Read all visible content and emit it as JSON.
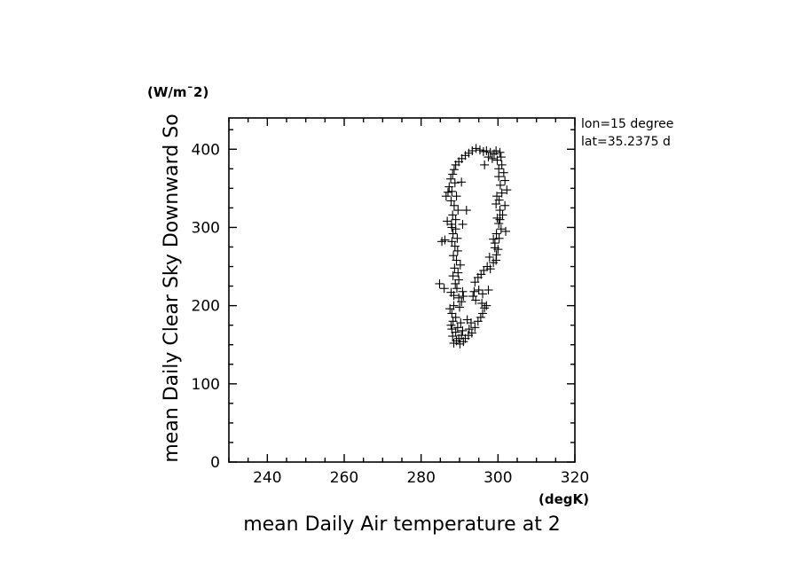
{
  "chart_data": {
    "type": "scatter",
    "title": "",
    "xlabel": "mean Daily Air temperature at 2",
    "ylabel": "mean Daily Clear Sky Downward So",
    "x_unit": "(degK)",
    "y_unit": "(W/m¯2)",
    "xlim": [
      230,
      320
    ],
    "ylim": [
      0,
      440
    ],
    "x_ticks": [
      "240",
      "260",
      "280",
      "300",
      "320"
    ],
    "y_ticks": [
      "0",
      "100",
      "200",
      "300",
      "400"
    ],
    "marker": "+",
    "annotations": [
      "lon=15 degree",
      "lat=35.2375 d"
    ],
    "grid": false,
    "points": [
      [
        288.5,
        152
      ],
      [
        289.2,
        155
      ],
      [
        290.1,
        151
      ],
      [
        291.0,
        154
      ],
      [
        289.8,
        158
      ],
      [
        288.2,
        161
      ],
      [
        290.5,
        162
      ],
      [
        291.5,
        158
      ],
      [
        292.3,
        162
      ],
      [
        289.0,
        166
      ],
      [
        288.0,
        170
      ],
      [
        287.8,
        175
      ],
      [
        289.5,
        172
      ],
      [
        290.8,
        168
      ],
      [
        292.5,
        170
      ],
      [
        293.2,
        165
      ],
      [
        294.0,
        172
      ],
      [
        293.0,
        178
      ],
      [
        292.0,
        182
      ],
      [
        288.3,
        180
      ],
      [
        289.0,
        185
      ],
      [
        290.3,
        178
      ],
      [
        294.8,
        180
      ],
      [
        295.5,
        185
      ],
      [
        296.0,
        190
      ],
      [
        296.5,
        197
      ],
      [
        297.0,
        200
      ],
      [
        295.8,
        203
      ],
      [
        294.2,
        207
      ],
      [
        293.5,
        212
      ],
      [
        293.8,
        218
      ],
      [
        295.0,
        220
      ],
      [
        296.0,
        215
      ],
      [
        297.5,
        220
      ],
      [
        288.0,
        190
      ],
      [
        287.5,
        196
      ],
      [
        288.5,
        200
      ],
      [
        290.0,
        198
      ],
      [
        290.5,
        205
      ],
      [
        289.8,
        210
      ],
      [
        288.5,
        213
      ],
      [
        287.8,
        217
      ],
      [
        289.3,
        222
      ],
      [
        290.8,
        218
      ],
      [
        291.0,
        212
      ],
      [
        286.0,
        222
      ],
      [
        284.8,
        228
      ],
      [
        294.0,
        230
      ],
      [
        294.8,
        236
      ],
      [
        295.6,
        240
      ],
      [
        296.3,
        245
      ],
      [
        297.2,
        250
      ],
      [
        298.0,
        247
      ],
      [
        298.8,
        255
      ],
      [
        299.5,
        258
      ],
      [
        299.6,
        265
      ],
      [
        300.0,
        272
      ],
      [
        299.2,
        280
      ],
      [
        300.3,
        286
      ],
      [
        299.6,
        292
      ],
      [
        300.8,
        298
      ],
      [
        302.0,
        295
      ],
      [
        300.2,
        305
      ],
      [
        299.8,
        312
      ],
      [
        301.2,
        316
      ],
      [
        300.5,
        322
      ],
      [
        301.8,
        328
      ],
      [
        300.3,
        335
      ],
      [
        299.7,
        340
      ],
      [
        301.0,
        344
      ],
      [
        302.3,
        348
      ],
      [
        300.6,
        354
      ],
      [
        301.8,
        360
      ],
      [
        300.2,
        365
      ],
      [
        301.5,
        370
      ],
      [
        300.2,
        375
      ],
      [
        301.0,
        380
      ],
      [
        299.8,
        386
      ],
      [
        300.8,
        390
      ],
      [
        299.0,
        394
      ],
      [
        298.0,
        396
      ],
      [
        297.0,
        398
      ],
      [
        299.5,
        398
      ],
      [
        300.5,
        396
      ],
      [
        296.2,
        397
      ],
      [
        295.3,
        399
      ],
      [
        294.3,
        401
      ],
      [
        293.3,
        398
      ],
      [
        292.4,
        395
      ],
      [
        291.5,
        392
      ],
      [
        290.6,
        388
      ],
      [
        289.8,
        384
      ],
      [
        289.0,
        380
      ],
      [
        288.6,
        374
      ],
      [
        288.2,
        368
      ],
      [
        287.7,
        362
      ],
      [
        288.8,
        357
      ],
      [
        287.3,
        352
      ],
      [
        288.0,
        346
      ],
      [
        289.2,
        340
      ],
      [
        287.8,
        334
      ],
      [
        288.6,
        328
      ],
      [
        289.6,
        322
      ],
      [
        288.2,
        316
      ],
      [
        289.0,
        310
      ],
      [
        287.9,
        304
      ],
      [
        289.0,
        298
      ],
      [
        288.3,
        292
      ],
      [
        289.4,
        286
      ],
      [
        288.0,
        282
      ],
      [
        288.8,
        276
      ],
      [
        289.5,
        270
      ],
      [
        288.4,
        264
      ],
      [
        289.2,
        258
      ],
      [
        290.2,
        252
      ],
      [
        288.7,
        248
      ],
      [
        289.6,
        242
      ],
      [
        288.3,
        238
      ],
      [
        289.8,
        233
      ],
      [
        288.9,
        228
      ],
      [
        286.2,
        284
      ],
      [
        285.4,
        282
      ],
      [
        286.8,
        308
      ],
      [
        290.8,
        304
      ],
      [
        290.5,
        358
      ],
      [
        291.8,
        322
      ],
      [
        286.5,
        340
      ],
      [
        287.0,
        345
      ],
      [
        288.0,
        300
      ],
      [
        296.5,
        380
      ],
      [
        297.5,
        390
      ],
      [
        298.5,
        388
      ],
      [
        299.5,
        330
      ],
      [
        300.5,
        310
      ],
      [
        298.8,
        285
      ],
      [
        299.2,
        274
      ],
      [
        297.8,
        262
      ]
    ]
  }
}
